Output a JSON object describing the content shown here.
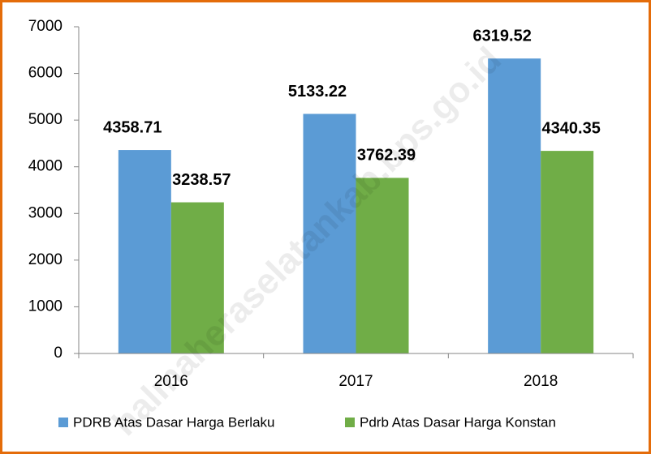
{
  "chart_data": {
    "type": "bar",
    "categories": [
      "2016",
      "2017",
      "2018"
    ],
    "series": [
      {
        "name": "PDRB Atas Dasar Harga Berlaku",
        "color": "#5b9bd5",
        "values": [
          4358.71,
          5133.22,
          6319.52
        ]
      },
      {
        "name": "Pdrb Atas Dasar Harga Konstan",
        "color": "#70ad47",
        "values": [
          3238.57,
          3762.39,
          4340.35
        ]
      }
    ],
    "ylim": [
      0,
      7000
    ],
    "yticks": [
      0,
      1000,
      2000,
      3000,
      4000,
      5000,
      6000,
      7000
    ],
    "legend": "bottom",
    "watermark": "halmaheraselatankab.bps.go.id"
  }
}
